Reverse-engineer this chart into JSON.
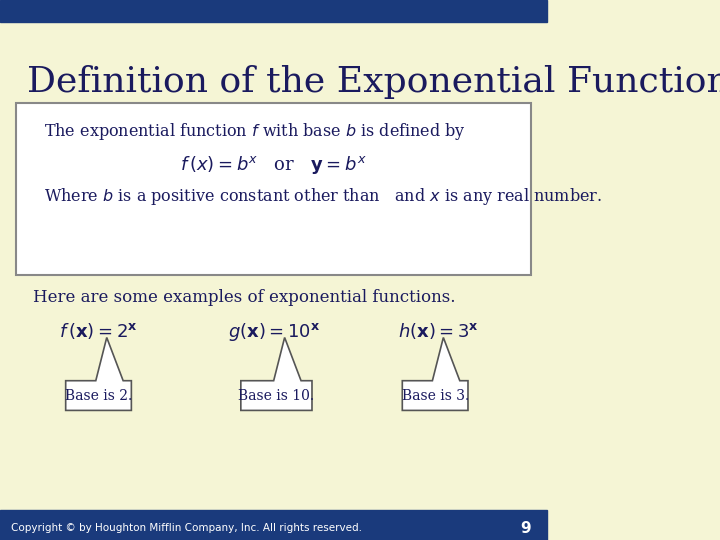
{
  "title": "Definition of the Exponential Function",
  "bg_color": "#f5f5d5",
  "header_bar_color": "#1a3a7c",
  "footer_bar_color": "#1a3a7c",
  "title_color": "#1a1a5e",
  "body_text_color": "#1a1a5e",
  "box_bg": "#ffffff",
  "box_border": "#888888",
  "footer_text": "Copyright © by Houghton Mifflin Company, Inc. All rights reserved.",
  "page_number": "9",
  "header_bar_height": 0.04,
  "footer_bar_height": 0.04
}
